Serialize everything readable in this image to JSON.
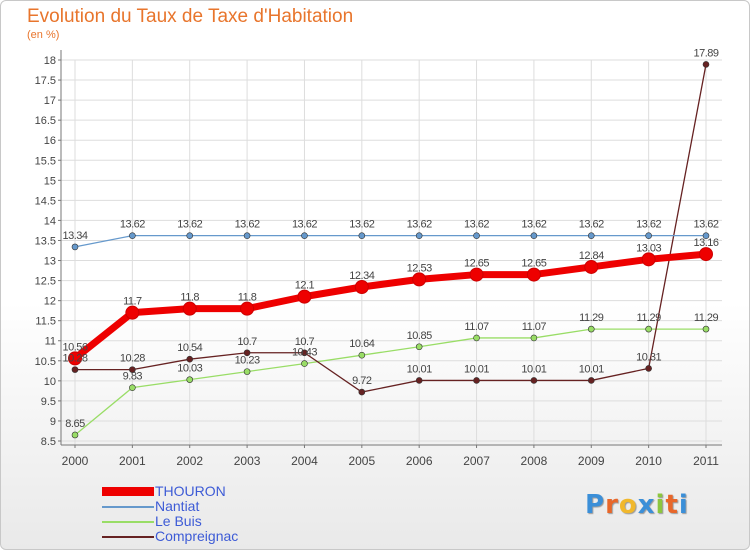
{
  "chart_data": {
    "type": "line",
    "title": "Evolution du Taux de Taxe d'Habitation",
    "ylabel": "(en %)",
    "xlabel": "",
    "x": [
      "2000",
      "2001",
      "2002",
      "2003",
      "2004",
      "2005",
      "2006",
      "2007",
      "2008",
      "2009",
      "2010",
      "2011"
    ],
    "ylim": [
      8.5,
      18
    ],
    "yticks": [
      8.5,
      9,
      9.5,
      10,
      10.5,
      11,
      11.5,
      12,
      12.5,
      13,
      13.5,
      14,
      14.5,
      15,
      15.5,
      16,
      16.5,
      17,
      17.5,
      18
    ],
    "ytick_labels": [
      "8.5",
      "9",
      "9.5",
      "10",
      "10.5",
      "11",
      "11.5",
      "12",
      "12.5",
      "13",
      "13.5",
      "14",
      "14.5",
      "15",
      "15.5",
      "16",
      "16.5",
      "17",
      "17.5",
      "18"
    ],
    "series": [
      {
        "name": "THOURON",
        "color": "#ee0000",
        "values": [
          10.56,
          11.7,
          11.8,
          11.8,
          12.1,
          12.34,
          12.53,
          12.65,
          12.65,
          12.84,
          13.03,
          13.16
        ],
        "labels": [
          "10.56",
          "11.7",
          "11.8",
          "11.8",
          "12.1",
          "12.34",
          "12.53",
          "12.65",
          "12.65",
          "12.84",
          "13.03",
          "13.16"
        ]
      },
      {
        "name": "Nantiat",
        "color": "#6699cc",
        "values": [
          13.34,
          13.62,
          13.62,
          13.62,
          13.62,
          13.62,
          13.62,
          13.62,
          13.62,
          13.62,
          13.62,
          13.62
        ],
        "labels": [
          "13.34",
          "13.62",
          "13.62",
          "13.62",
          "13.62",
          "13.62",
          "13.62",
          "13.62",
          "13.62",
          "13.62",
          "13.62",
          "13.62"
        ]
      },
      {
        "name": "Le Buis",
        "color": "#99dd66",
        "values": [
          8.65,
          9.83,
          10.03,
          10.23,
          10.43,
          10.64,
          10.85,
          11.07,
          11.07,
          11.29,
          11.29,
          11.29
        ],
        "labels": [
          "8.65",
          "9.83",
          "10.03",
          "10.23",
          "10.43",
          "10.64",
          "10.85",
          "11.07",
          "11.07",
          "11.29",
          "11.29",
          "11.29"
        ]
      },
      {
        "name": "Compreignac",
        "color": "#662222",
        "values": [
          10.28,
          10.28,
          10.54,
          10.7,
          10.7,
          9.72,
          10.01,
          10.01,
          10.01,
          10.01,
          10.31,
          17.89
        ],
        "labels": [
          "10.28",
          "10.28",
          "10.54",
          "10.7",
          "10.7",
          "9.72",
          "10.01",
          "10.01",
          "10.01",
          "10.01",
          "10.31",
          "17.89"
        ]
      }
    ],
    "legend": [
      "THOURON",
      "Nantiat",
      "Le Buis",
      "Compreignac"
    ]
  },
  "logo": {
    "letters": [
      "P",
      "r",
      "o",
      "x",
      "i",
      "t",
      "i"
    ],
    "colors": [
      "#3b8fd8",
      "#e8672a",
      "#f1b82c",
      "#3b8fd8",
      "#8cc63f",
      "#e8672a",
      "#3b8fd8"
    ]
  }
}
